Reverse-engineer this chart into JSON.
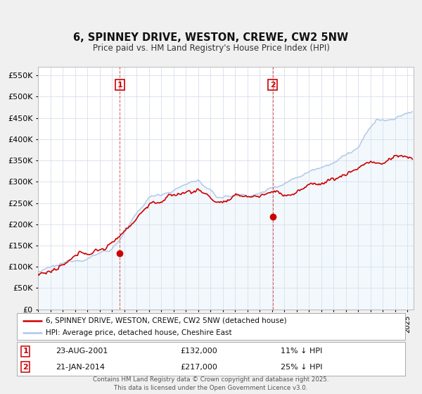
{
  "title": "6, SPINNEY DRIVE, WESTON, CREWE, CW2 5NW",
  "subtitle": "Price paid vs. HM Land Registry's House Price Index (HPI)",
  "hpi_color": "#aec6e8",
  "hpi_fill_color": "#d0e4f5",
  "price_color": "#cc0000",
  "sale1_date": "23-AUG-2001",
  "sale1_year": 2001.644,
  "sale1_price": 132000,
  "sale2_date": "21-JAN-2014",
  "sale2_year": 2014.055,
  "sale2_price": 217000,
  "legend1": "6, SPINNEY DRIVE, WESTON, CREWE, CW2 5NW (detached house)",
  "legend2": "HPI: Average price, detached house, Cheshire East",
  "footer": "Contains HM Land Registry data © Crown copyright and database right 2025.\nThis data is licensed under the Open Government Licence v3.0.",
  "ylim_max": 570000,
  "ylim_min": 0,
  "year_start": 1995,
  "year_end": 2025
}
